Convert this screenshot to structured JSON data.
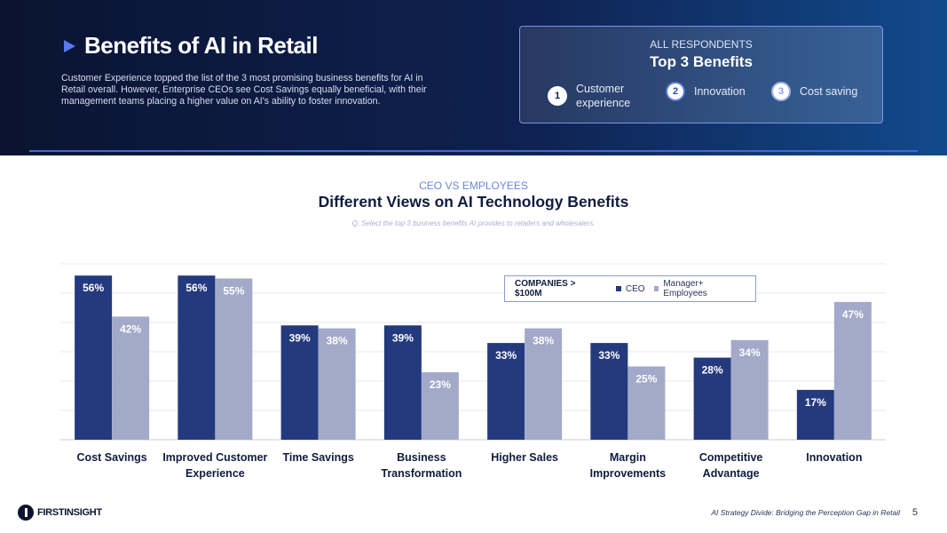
{
  "header": {
    "title": "Benefits of AI in Retail",
    "intro": "Customer Experience topped the list of the 3 most promising business benefits for AI in Retail overall. However, Enterprise CEOs see Cost Savings equally beneficial, with their management teams placing a higher value on AI's ability to foster innovation."
  },
  "top3": {
    "label": "ALL RESPONDENTS",
    "title": "Top 3 Benefits",
    "items": [
      {
        "rank": "1",
        "text": "Customer experience"
      },
      {
        "rank": "2",
        "text": "Innovation"
      },
      {
        "rank": "3",
        "text": "Cost saving"
      }
    ]
  },
  "section": {
    "label": "CEO VS EMPLOYEES",
    "title": "Different Views on AI Technology Benefits",
    "question": "Q: Select the top 3 business benefits AI provides to retailers and wholesalers."
  },
  "legend": {
    "title": "COMPANIES > $100M",
    "items": [
      "CEO",
      "Manager+ Employees"
    ]
  },
  "colors": {
    "ceo": "#243a7e",
    "employees": "#a3a9c9",
    "accent": "#5a78ef"
  },
  "chart_data": {
    "type": "bar",
    "title": "Different Views on AI Technology Benefits",
    "categories": [
      "Cost Savings",
      "Improved Customer Experience",
      "Time Savings",
      "Business Transformation",
      "Higher Sales",
      "Margin Improvements",
      "Competitive Advantage",
      "Innovation"
    ],
    "category_lines": [
      [
        "Cost Savings"
      ],
      [
        "Improved Customer",
        "Experience"
      ],
      [
        "Time Savings"
      ],
      [
        "Business",
        "Transformation"
      ],
      [
        "Higher Sales"
      ],
      [
        "Margin",
        "Improvements"
      ],
      [
        "Competitive",
        "Advantage"
      ],
      [
        "Innovation"
      ]
    ],
    "series": [
      {
        "name": "CEO",
        "values": [
          56,
          56,
          39,
          39,
          33,
          33,
          28,
          17
        ]
      },
      {
        "name": "Manager+ Employees",
        "values": [
          42,
          55,
          38,
          23,
          38,
          25,
          34,
          47
        ]
      }
    ],
    "unit": "%",
    "ylim": [
      0,
      60
    ],
    "xlabel": "",
    "ylabel": "",
    "grid": true,
    "legend": "top-right"
  },
  "footer": {
    "logo": "FIRSTINSIGHT",
    "text": "AI Strategy Divide: Bridging the Perception Gap in Retail",
    "page": "5"
  }
}
